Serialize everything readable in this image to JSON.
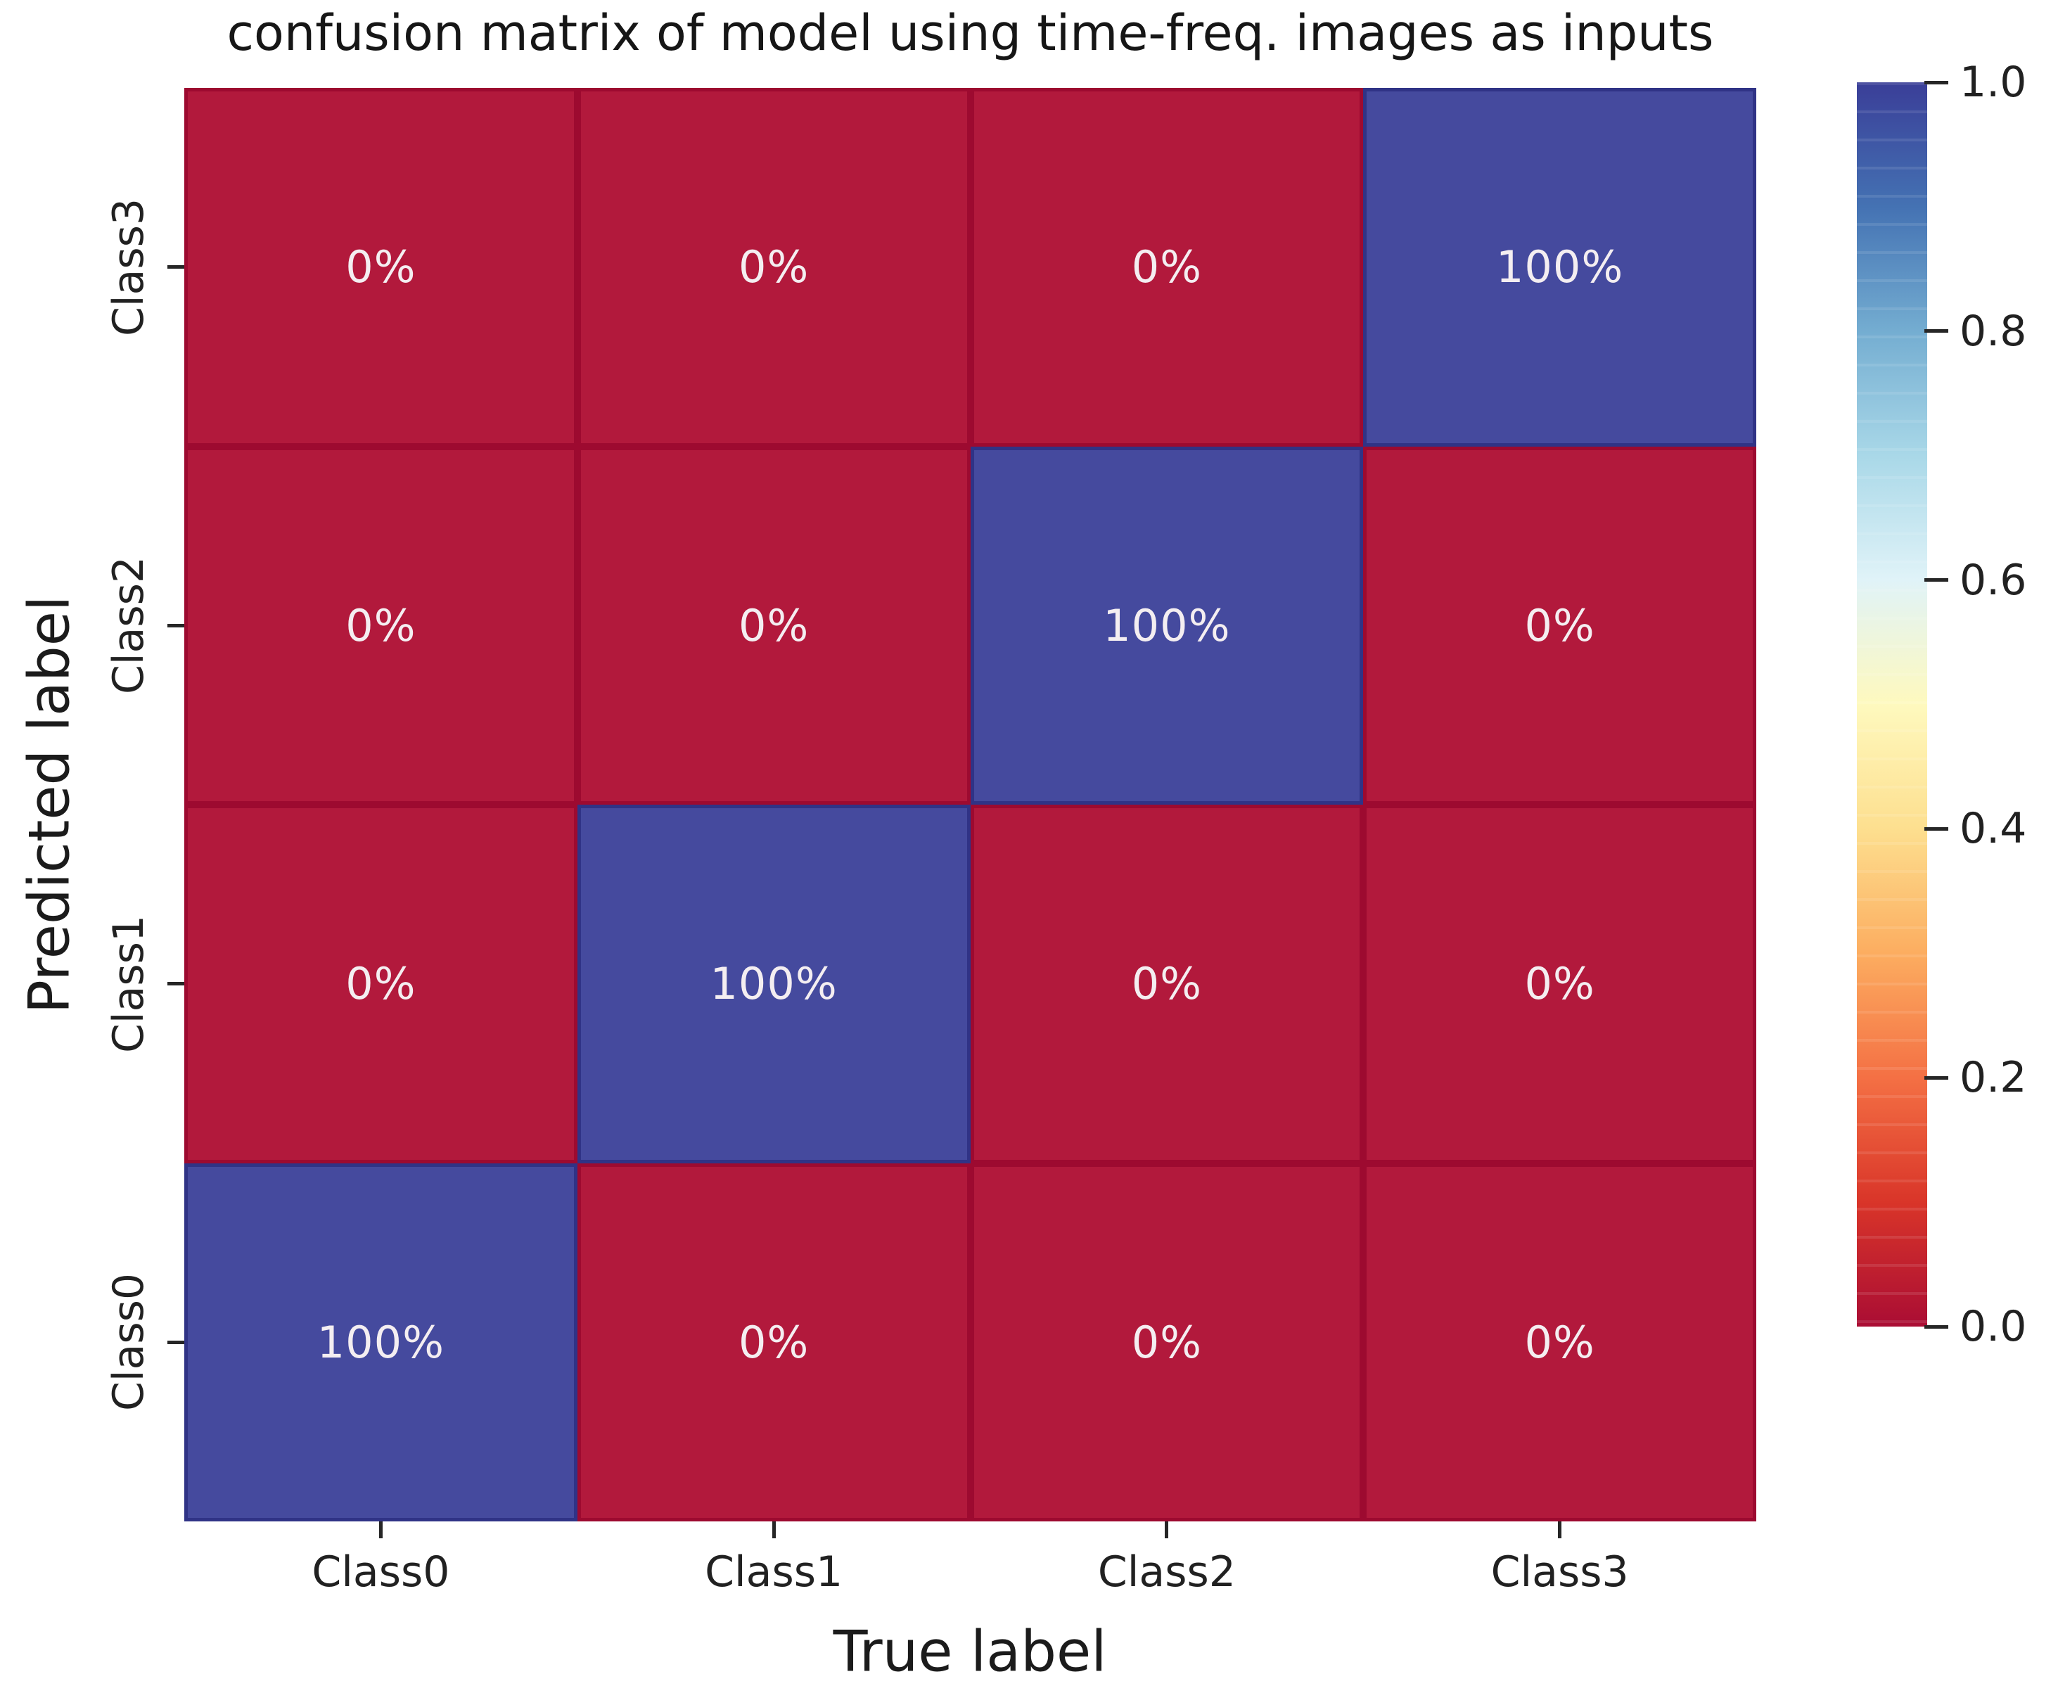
{
  "figure": {
    "background": "#FFFFFF"
  },
  "chart_data": {
    "type": "heatmap",
    "title": "confusion matrix of model using time-freq. images as inputs",
    "xlabel": "True label",
    "ylabel": "Predicted label",
    "x_categories": [
      "Class0",
      "Class1",
      "Class2",
      "Class3"
    ],
    "y_categories_top_to_bottom": [
      "Class3",
      "Class2",
      "Class1",
      "Class0"
    ],
    "values_percent_rows_top_to_bottom": [
      [
        0,
        0,
        0,
        100
      ],
      [
        0,
        0,
        100,
        0
      ],
      [
        0,
        100,
        0,
        0
      ],
      [
        100,
        0,
        0,
        0
      ]
    ],
    "cell_labels_rows_top_to_bottom": [
      [
        "0%",
        "0%",
        "0%",
        "100%"
      ],
      [
        "0%",
        "0%",
        "100%",
        "0%"
      ],
      [
        "0%",
        "100%",
        "0%",
        "0%"
      ],
      [
        "100%",
        "0%",
        "0%",
        "0%"
      ]
    ],
    "grid": "off",
    "legend_position": "right-colorbar",
    "colorbar": {
      "colormap_name": "RdYlBu",
      "value_range": [
        0.0,
        1.0
      ],
      "tick_labels_top_to_bottom": [
        "1.0",
        "0.8",
        "0.6",
        "0.4",
        "0.2",
        "0.0"
      ],
      "gradient_top_to_bottom": [
        {
          "pos": 0,
          "color": "#3A3E98"
        },
        {
          "pos": 10,
          "color": "#4472B3"
        },
        {
          "pos": 20,
          "color": "#74ADD1"
        },
        {
          "pos": 30,
          "color": "#A9D8E8"
        },
        {
          "pos": 40,
          "color": "#E0F3F8"
        },
        {
          "pos": 50,
          "color": "#FEF9BE"
        },
        {
          "pos": 60,
          "color": "#FDDF8F"
        },
        {
          "pos": 70,
          "color": "#FCAD60"
        },
        {
          "pos": 80,
          "color": "#F47044"
        },
        {
          "pos": 90,
          "color": "#D93529"
        },
        {
          "pos": 100,
          "color": "#AA0D34"
        }
      ]
    },
    "colors": {
      "cell_high_fill": "#454A9E",
      "cell_high_border": "#303386",
      "cell_low_fill": "#B2193C",
      "cell_low_border": "#9D0A30",
      "annotation_text": "#F4EEF1",
      "axis_text": "#212121",
      "title_text": "#161616",
      "tick_mark": "#262626"
    }
  }
}
